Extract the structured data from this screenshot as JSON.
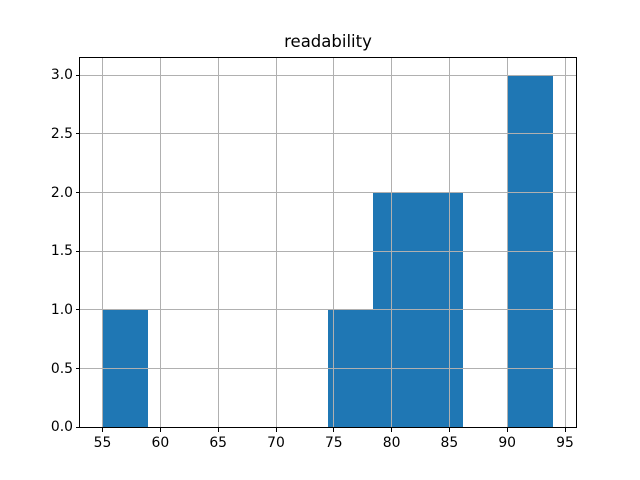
{
  "chart_data": {
    "type": "bar",
    "subtype": "histogram",
    "title": "readability",
    "xlabel": "",
    "ylabel": "",
    "bin_edges": [
      55.0,
      58.9,
      62.8,
      66.7,
      70.6,
      74.5,
      78.4,
      82.3,
      86.2,
      90.1,
      94.0
    ],
    "counts": [
      1,
      0,
      0,
      0,
      0,
      1,
      2,
      2,
      0,
      3
    ],
    "xlim": [
      53.05,
      95.95
    ],
    "ylim": [
      0,
      3.15
    ],
    "xticks": [
      55,
      60,
      65,
      70,
      75,
      80,
      85,
      90,
      95
    ],
    "xtick_labels": [
      "55",
      "60",
      "65",
      "70",
      "75",
      "80",
      "85",
      "90",
      "95"
    ],
    "yticks": [
      0.0,
      0.5,
      1.0,
      1.5,
      2.0,
      2.5,
      3.0
    ],
    "ytick_labels": [
      "0.0",
      "0.5",
      "1.0",
      "1.5",
      "2.0",
      "2.5",
      "3.0"
    ],
    "grid": true,
    "grid_above_bars": true,
    "legend": null,
    "colors": {
      "bar": "#1f77b4",
      "grid": "#b0b0b0",
      "spine": "#000000",
      "text": "#000000",
      "background": "#ffffff"
    }
  }
}
